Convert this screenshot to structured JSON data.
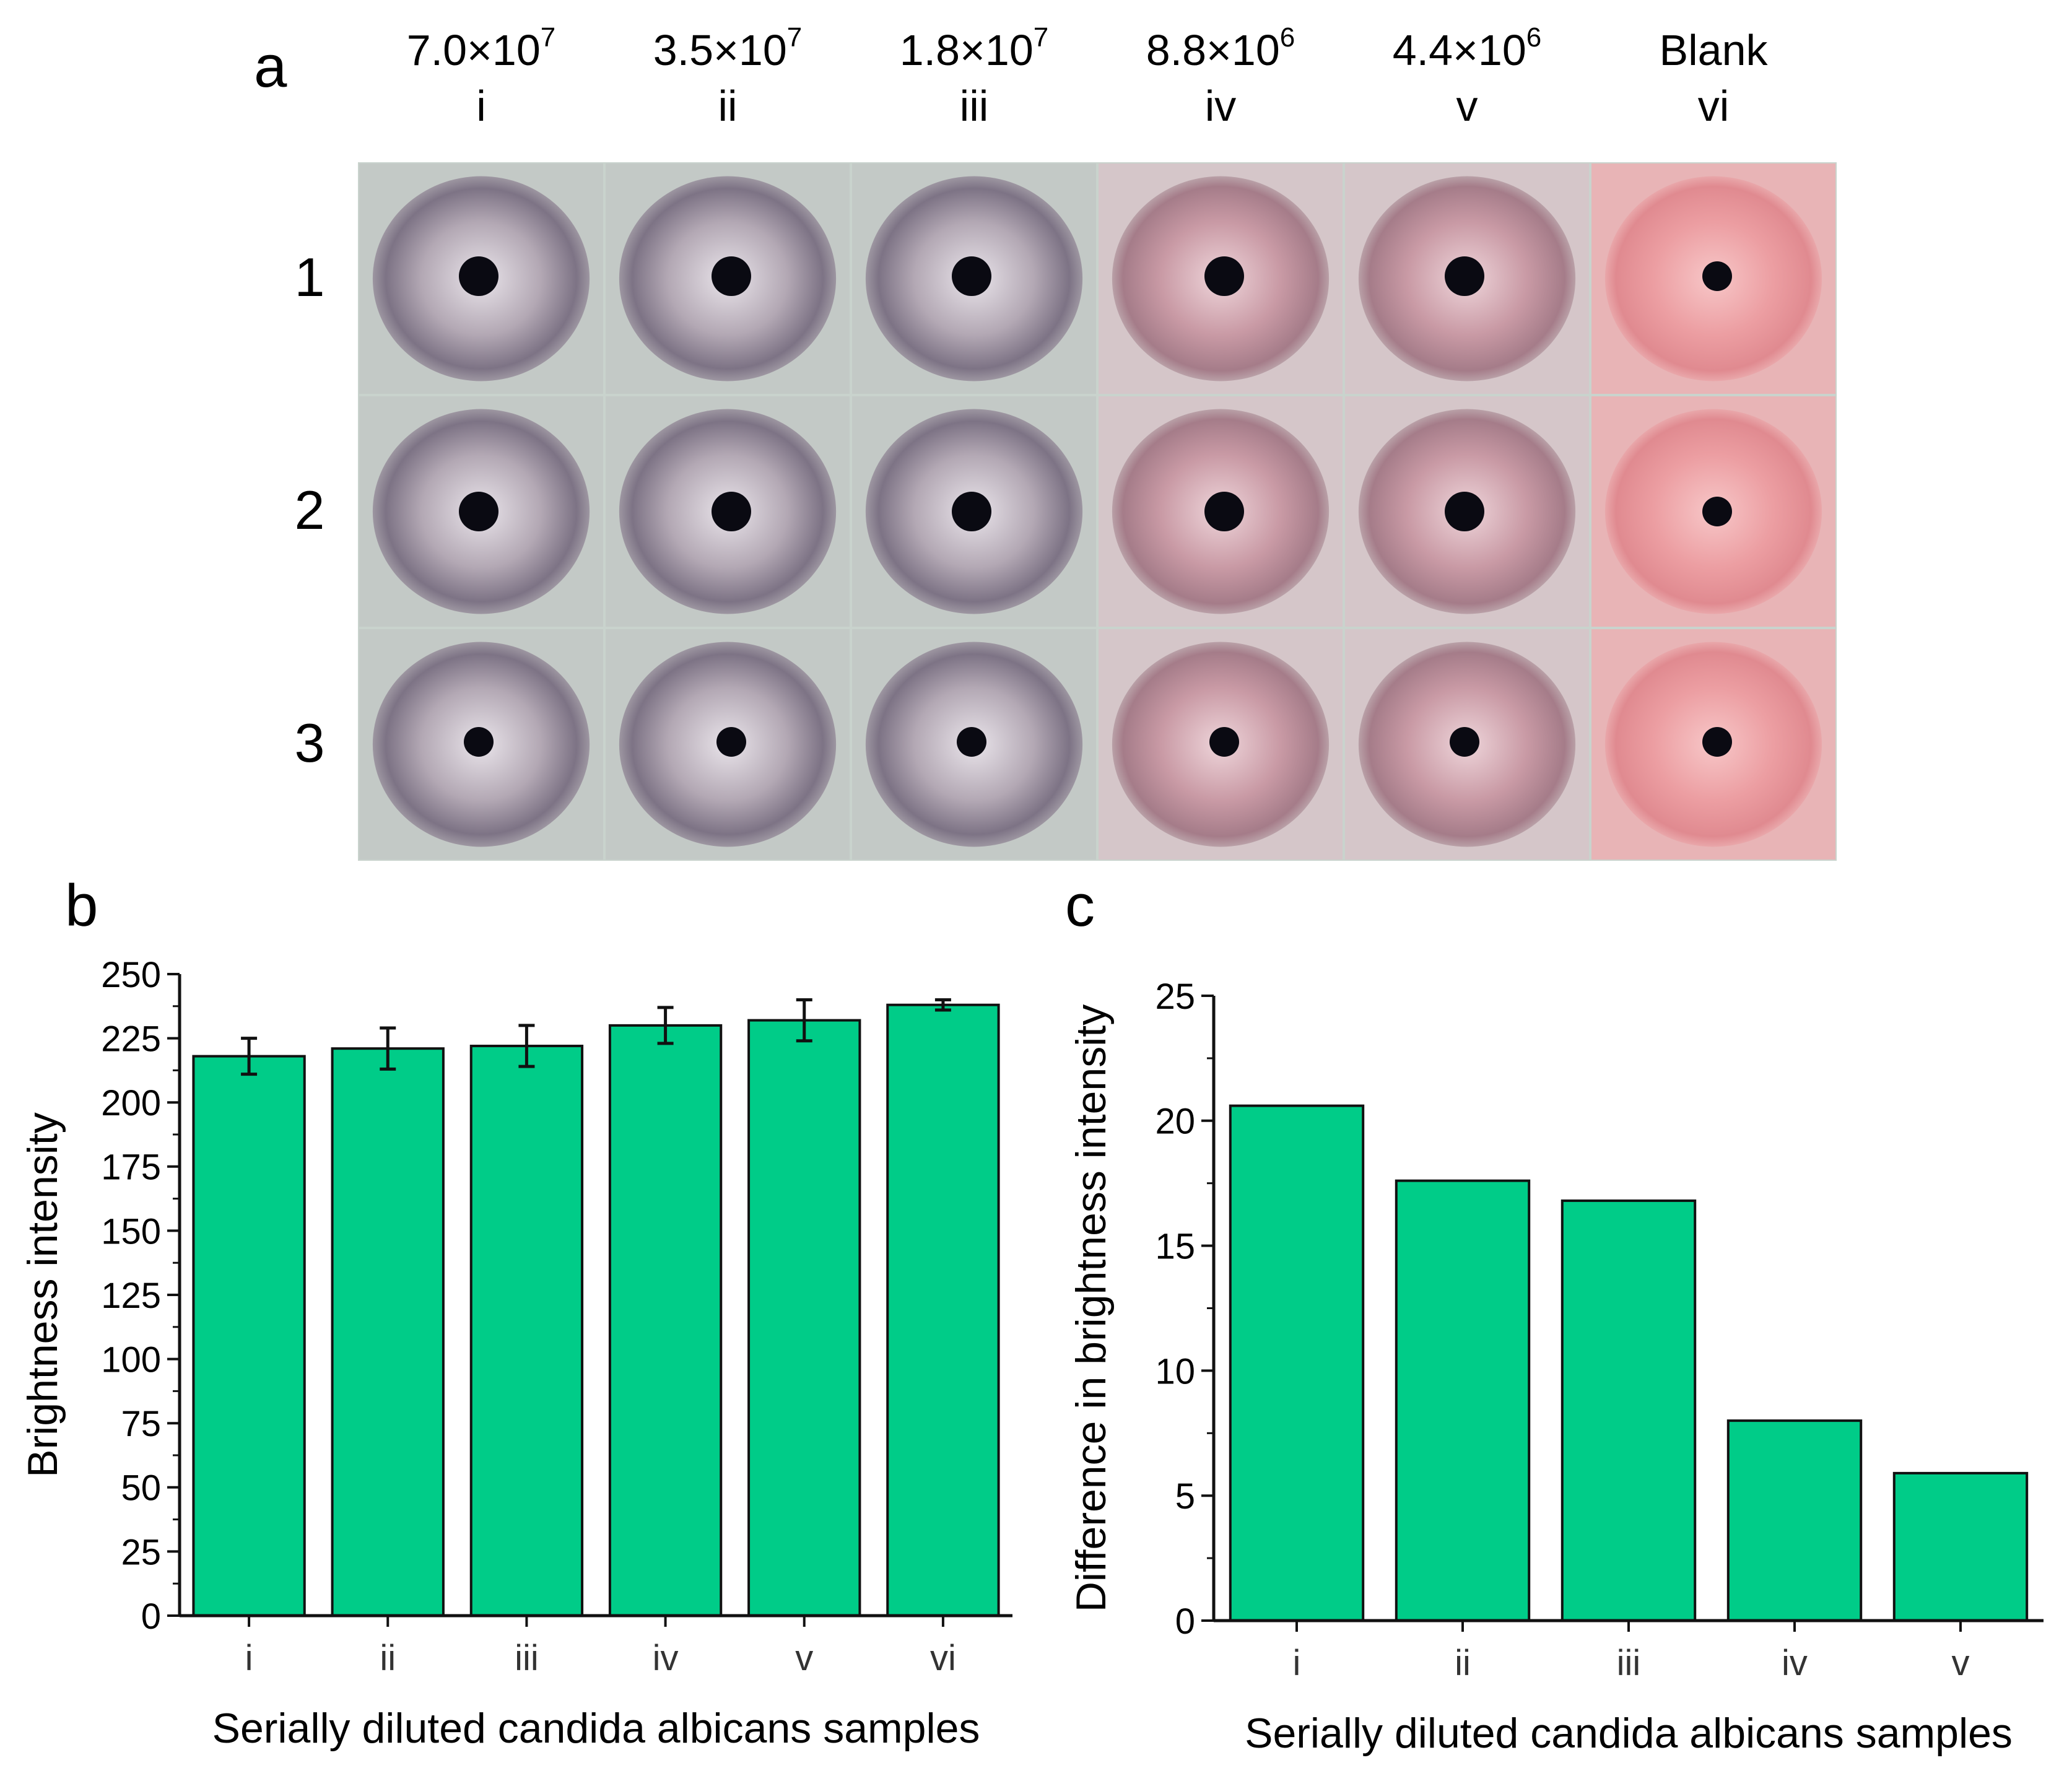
{
  "panel_a": {
    "label": "a",
    "columns": [
      {
        "conc_base": "7.0×10",
        "conc_exp": "7",
        "roman": "i",
        "tint": "gray"
      },
      {
        "conc_base": "3.5×10",
        "conc_exp": "7",
        "roman": "ii",
        "tint": "gray"
      },
      {
        "conc_base": "1.8×10",
        "conc_exp": "7",
        "roman": "iii",
        "tint": "gray"
      },
      {
        "conc_base": "8.8×10",
        "conc_exp": "6",
        "roman": "iv",
        "tint": "mauve"
      },
      {
        "conc_base": "4.4×10",
        "conc_exp": "6",
        "roman": "v",
        "tint": "mauve"
      },
      {
        "conc_base": "Blank",
        "conc_exp": "",
        "roman": "vi",
        "tint": "pink"
      }
    ],
    "rows": [
      "1",
      "2",
      "3"
    ],
    "colors": {
      "gray": "#8f8593",
      "mauve": "#b98a95",
      "pink": "#e9959a",
      "background": "#c9d3cd"
    }
  },
  "chart_data": [
    {
      "panel": "b",
      "type": "bar",
      "categories": [
        "i",
        "ii",
        "iii",
        "iv",
        "v",
        "vi"
      ],
      "values": [
        218,
        221,
        222,
        230,
        232,
        238
      ],
      "errors": [
        7,
        8,
        8,
        7,
        8,
        2
      ],
      "ylim": [
        0,
        250
      ],
      "yticks": [
        0,
        25,
        50,
        75,
        100,
        125,
        150,
        175,
        200,
        225,
        250
      ],
      "xlabel": "Serially diluted candida albicans samples",
      "ylabel": "Brightness intensity",
      "bar_color": "#00cc88"
    },
    {
      "panel": "c",
      "type": "bar",
      "categories": [
        "i",
        "ii",
        "iii",
        "iv",
        "v"
      ],
      "values": [
        20.6,
        17.6,
        16.8,
        8.0,
        5.9
      ],
      "ylim": [
        0,
        25
      ],
      "yticks": [
        0,
        5,
        10,
        15,
        20,
        25
      ],
      "xlabel": "Serially diluted candida albicans samples",
      "ylabel": "Difference in brightness intensity",
      "bar_color": "#00cc88"
    }
  ]
}
